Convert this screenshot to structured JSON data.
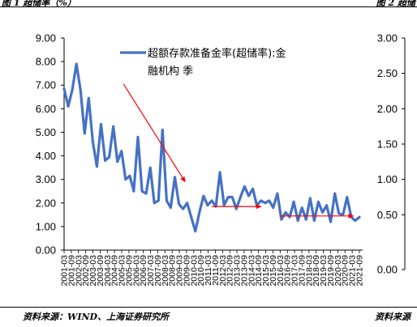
{
  "header": {
    "left": "图 1  超储率（%）",
    "right": "图 2  超储"
  },
  "footer": {
    "left": "资料来源：WIND、上海证券研究所",
    "right": "资料来源"
  },
  "colors": {
    "series": "#4472C4",
    "arrow": "#FF0000",
    "axis": "#000000"
  },
  "chart_data": {
    "type": "line",
    "legend_position": "top",
    "grid": false,
    "ylim": [
      0,
      9
    ],
    "yticks": [
      "0.00",
      "1.00",
      "2.00",
      "3.00",
      "4.00",
      "5.00",
      "6.00",
      "7.00",
      "8.00",
      "9.00"
    ],
    "secondary_ylim": [
      0,
      3
    ],
    "secondary_yticks": [
      "0.00",
      "0.50",
      "1.00",
      "1.50",
      "2.00",
      "2.50",
      "3.00"
    ],
    "x_labels": [
      "2001-03",
      "2001-09",
      "2002-03",
      "2002-09",
      "2003-03",
      "2003-09",
      "2004-03",
      "2004-09",
      "2005-03",
      "2005-09",
      "2006-03",
      "2006-09",
      "2007-03",
      "2007-09",
      "2008-03",
      "2008-09",
      "2009-03",
      "2009-09",
      "2010-03",
      "2010-09",
      "2011-03",
      "2011-09",
      "2012-03",
      "2012-09",
      "2013-03",
      "2013-09",
      "2014-03",
      "2014-09",
      "2015-03",
      "2015-09",
      "2016-03",
      "2016-09",
      "2017-03",
      "2017-09",
      "2018-03",
      "2018-09",
      "2019-03",
      "2019-09",
      "2020-03",
      "2020-09",
      "2021-03",
      "2021-09"
    ],
    "series": [
      {
        "name": "超额存款准备金率(超储率):金融机构 季",
        "values": [
          6.85,
          6.1,
          6.8,
          7.9,
          6.8,
          4.95,
          6.45,
          4.6,
          3.55,
          5.35,
          3.8,
          3.95,
          5.25,
          3.75,
          4.2,
          3.0,
          3.15,
          2.5,
          4.8,
          2.5,
          2.4,
          3.5,
          2.0,
          2.1,
          5.1,
          2.1,
          1.8,
          3.1,
          1.95,
          1.75,
          2.0,
          1.4,
          0.8,
          1.6,
          2.3,
          1.9,
          2.1,
          1.85,
          3.3,
          1.9,
          2.25,
          2.25,
          1.75,
          2.25,
          2.7,
          2.3,
          2.6,
          1.9,
          2.1,
          2.0,
          2.1,
          1.8,
          2.4,
          1.3,
          1.6,
          1.4,
          2.05,
          1.25,
          1.8,
          1.3,
          2.2,
          1.25,
          2.05,
          1.6,
          1.9,
          1.2,
          2.4,
          1.55,
          1.5,
          2.25,
          1.4,
          1.25,
          1.4
        ]
      }
    ],
    "annotations": [
      {
        "type": "arrow",
        "from": {
          "x": 14.5,
          "y": 7.05
        },
        "to": {
          "x": 29.5,
          "y": 2.9
        }
      },
      {
        "type": "arrow",
        "from": {
          "x": 36.0,
          "y": 1.85
        },
        "to": {
          "x": 48.0,
          "y": 1.85
        }
      },
      {
        "type": "arrow",
        "from": {
          "x": 52.5,
          "y": 1.45
        },
        "to": {
          "x": 70.5,
          "y": 1.45
        }
      }
    ]
  }
}
